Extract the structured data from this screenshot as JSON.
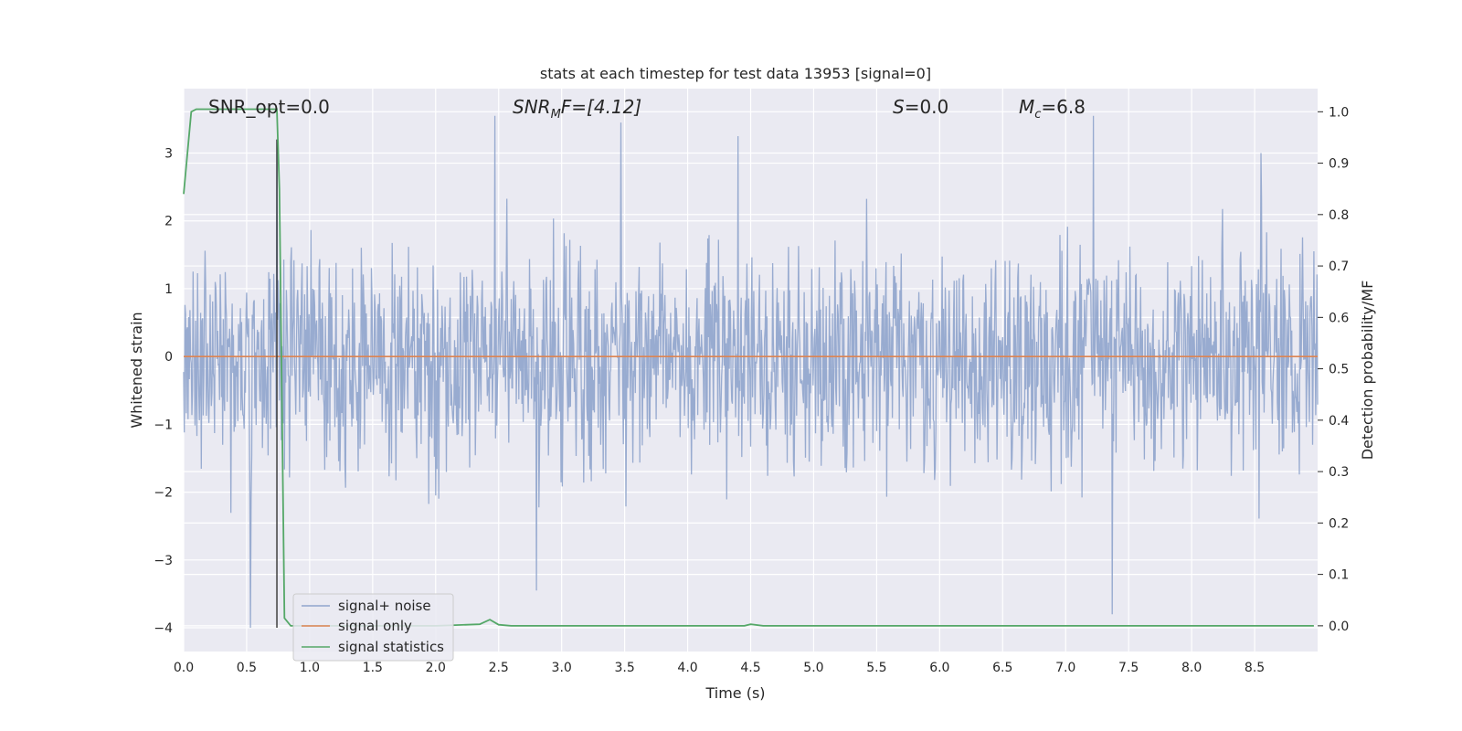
{
  "chart_data": {
    "type": "line",
    "title": "stats at each timestep for test data 13953 [signal=0]",
    "xlabel": "Time (s)",
    "ylabel": "Whitened strain",
    "y2label": "Detection probability/MF",
    "xlim": [
      0.0,
      9.0
    ],
    "ylim": [
      -4.35,
      3.95
    ],
    "y2lim": [
      -0.05,
      1.045
    ],
    "x_ticks": [
      "0.0",
      "0.5",
      "1.0",
      "1.5",
      "2.0",
      "2.5",
      "3.0",
      "3.5",
      "4.0",
      "4.5",
      "5.0",
      "5.5",
      "6.0",
      "6.5",
      "7.0",
      "7.5",
      "8.0",
      "8.5"
    ],
    "y_ticks": [
      "3",
      "2",
      "1",
      "0",
      "−1",
      "−2",
      "−3",
      "−4"
    ],
    "y2_ticks": [
      "1.0",
      "0.9",
      "0.8",
      "0.7",
      "0.6",
      "0.5",
      "0.4",
      "0.3",
      "0.2",
      "0.1",
      "0.0"
    ],
    "grid": true,
    "legend_position": "lower-left",
    "annotations": {
      "snr_opt": "SNR_opt=0.0",
      "snr_mf_base": "SNR",
      "snr_mf_sub": "M",
      "snr_mf_rest": "F=[4.12]",
      "s_base": "S",
      "s_rest": "=0.0",
      "mc_base": "M",
      "mc_sub": "c",
      "mc_rest": "=6.8"
    },
    "vline_x": 0.74,
    "series": [
      {
        "name": "signal+ noise",
        "color": "#8fa4cc",
        "kind": "noise",
        "envelope": [
          -4.0,
          3.55
        ],
        "peaks": [
          {
            "x": 0.53,
            "y": -4.0
          },
          {
            "x": 0.74,
            "y": 3.2
          },
          {
            "x": 2.47,
            "y": 3.55
          },
          {
            "x": 2.8,
            "y": -3.45
          },
          {
            "x": 7.22,
            "y": 3.55
          },
          {
            "x": 7.37,
            "y": -3.8
          },
          {
            "x": 3.47,
            "y": 3.45
          },
          {
            "x": 4.4,
            "y": 3.25
          },
          {
            "x": 8.55,
            "y": 3.0
          }
        ]
      },
      {
        "name": "signal only",
        "color": "#dd8452",
        "kind": "flat",
        "y": 0.0
      },
      {
        "name": "signal statistics",
        "color": "#55a868",
        "axis": "right",
        "x": [
          0.0,
          0.06,
          0.1,
          0.15,
          0.3,
          0.5,
          0.7,
          0.74,
          0.76,
          0.8,
          0.85,
          0.9,
          1.0,
          2.0,
          2.35,
          2.43,
          2.5,
          2.6,
          3.5,
          4.45,
          4.5,
          4.6,
          6.0,
          8.5,
          8.97
        ],
        "y": [
          0.84,
          1.0,
          1.005,
          1.005,
          1.005,
          1.005,
          1.005,
          1.005,
          0.85,
          0.015,
          0.0,
          0.0,
          0.0,
          0.0,
          0.003,
          0.012,
          0.002,
          0.0,
          0.0,
          0.0,
          0.003,
          0.0,
          0.0,
          0.0,
          0.0
        ]
      }
    ]
  }
}
